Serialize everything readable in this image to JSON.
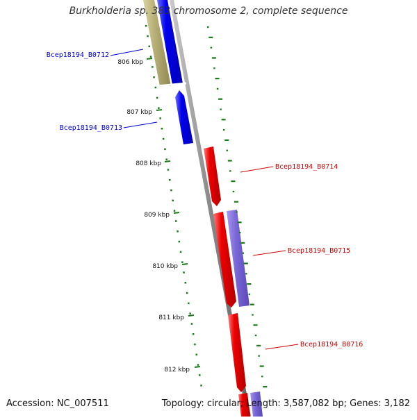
{
  "title": "Burkholderia sp. 383 chromosome 2, complete sequence",
  "footer": {
    "accession": "Accession: NC_007511",
    "summary": "Topology: circular; Length: 3,587,082 bp; Genes: 3,182"
  },
  "colors": {
    "backbone": "#8a8a8a",
    "forward_gene": "#0000ee",
    "reverse_gene": "#ee0000",
    "cds_forward": "#b8b078",
    "cds_reverse": "#7b68d8",
    "ticks": "#1a7a1a",
    "forward_label": "#0000cc",
    "reverse_label": "#cc0000"
  },
  "ticks": [
    {
      "label": "806 kbp"
    },
    {
      "label": "807 kbp"
    },
    {
      "label": "808 kbp"
    },
    {
      "label": "809 kbp"
    },
    {
      "label": "810 kbp"
    },
    {
      "label": "811 kbp"
    },
    {
      "label": "812 kbp"
    }
  ],
  "genes": [
    {
      "name": "Bcep18194_B0712",
      "strand": "forward"
    },
    {
      "name": "Bcep18194_B0713",
      "strand": "forward"
    },
    {
      "name": "Bcep18194_B0714",
      "strand": "reverse"
    },
    {
      "name": "Bcep18194_B0715",
      "strand": "reverse"
    },
    {
      "name": "Bcep18194_B0716",
      "strand": "reverse"
    }
  ]
}
